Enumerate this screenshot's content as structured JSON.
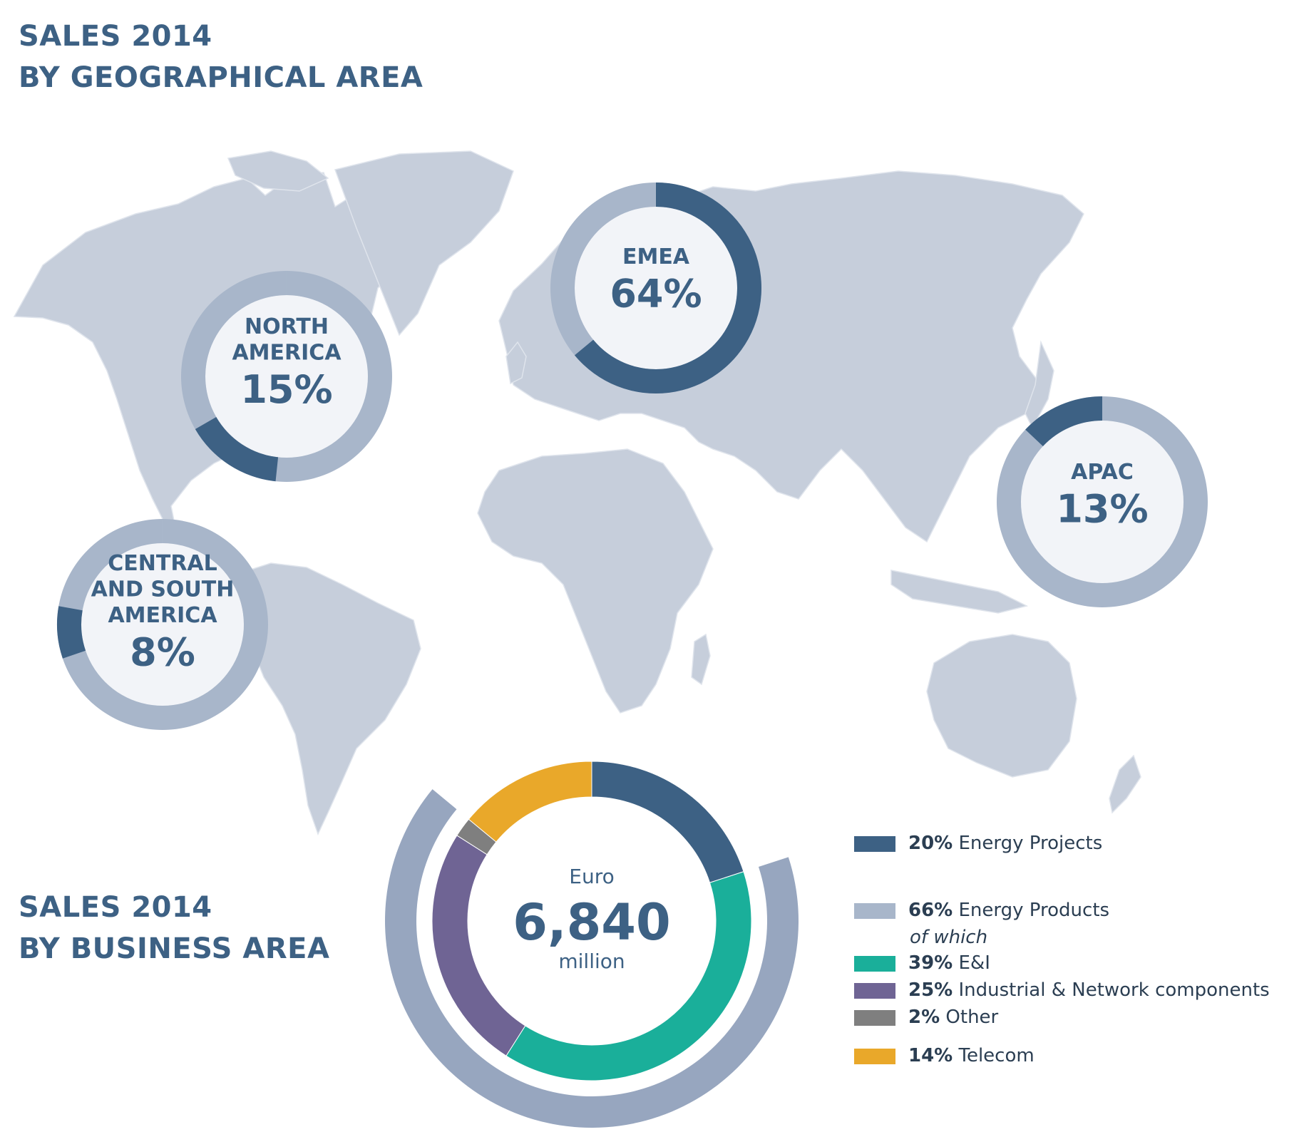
{
  "titles": {
    "geo": [
      "SALES 2014",
      "BY GEOGRAPHICAL AREA"
    ],
    "business": [
      "SALES 2014",
      "BY BUSINESS AREA"
    ]
  },
  "colors": {
    "dark_blue": "#3d6184",
    "light_blue": "#a8b6ca",
    "map_land": "#c6cedb",
    "teal": "#1aaf9a",
    "purple": "#6f6494",
    "gray": "#7f7f7f",
    "orange": "#e9a82a",
    "outer_ring": "#97a6bf"
  },
  "chart_data": [
    {
      "type": "pie",
      "title": "SALES 2014 BY GEOGRAPHICAL AREA",
      "series": [
        {
          "name": "NORTH AMERICA",
          "label_lines": [
            "NORTH",
            "AMERICA"
          ],
          "value_text": "15%",
          "value": 15
        },
        {
          "name": "EMEA",
          "label_lines": [
            "EMEA"
          ],
          "value_text": "64%",
          "value": 64
        },
        {
          "name": "APAC",
          "label_lines": [
            "APAC"
          ],
          "value_text": "13%",
          "value": 13
        },
        {
          "name": "CENTRAL AND SOUTH AMERICA",
          "label_lines": [
            "CENTRAL",
            "AND SOUTH",
            "AMERICA"
          ],
          "value_text": "8%",
          "value": 8
        }
      ]
    },
    {
      "type": "pie",
      "title": "SALES 2014 BY BUSINESS AREA",
      "center": {
        "top": "Euro",
        "value": "6,840",
        "bottom": "million"
      },
      "slices": [
        {
          "name": "Energy Projects",
          "value": 20,
          "pct": "20%",
          "color": "#3d6184"
        },
        {
          "name": "E&I",
          "value": 39,
          "pct": "39%",
          "color": "#1aaf9a"
        },
        {
          "name": "Industrial & Network components",
          "value": 25,
          "pct": "25%",
          "color": "#6f6494"
        },
        {
          "name": "Other",
          "value": 2,
          "pct": "2%",
          "color": "#7f7f7f"
        },
        {
          "name": "Telecom",
          "value": 14,
          "pct": "14%",
          "color": "#e9a82a"
        }
      ],
      "outer_group": {
        "name": "Energy Products",
        "value": 66,
        "pct": "66%",
        "note": "of which",
        "color": "#97a6bf"
      },
      "legend": [
        {
          "pct": "20%",
          "label": "Energy Projects",
          "color": "#3d6184"
        },
        {
          "pct": "66%",
          "label": "Energy Products",
          "color": "#a8b6ca",
          "note": "of which"
        },
        {
          "pct": "39%",
          "label": "E&I",
          "color": "#1aaf9a"
        },
        {
          "pct": "25%",
          "label": "Industrial & Network components",
          "color": "#6f6494"
        },
        {
          "pct": "2%",
          "label": "Other",
          "color": "#7f7f7f"
        },
        {
          "pct": "14%",
          "label": "Telecom",
          "color": "#e9a82a"
        }
      ]
    }
  ]
}
